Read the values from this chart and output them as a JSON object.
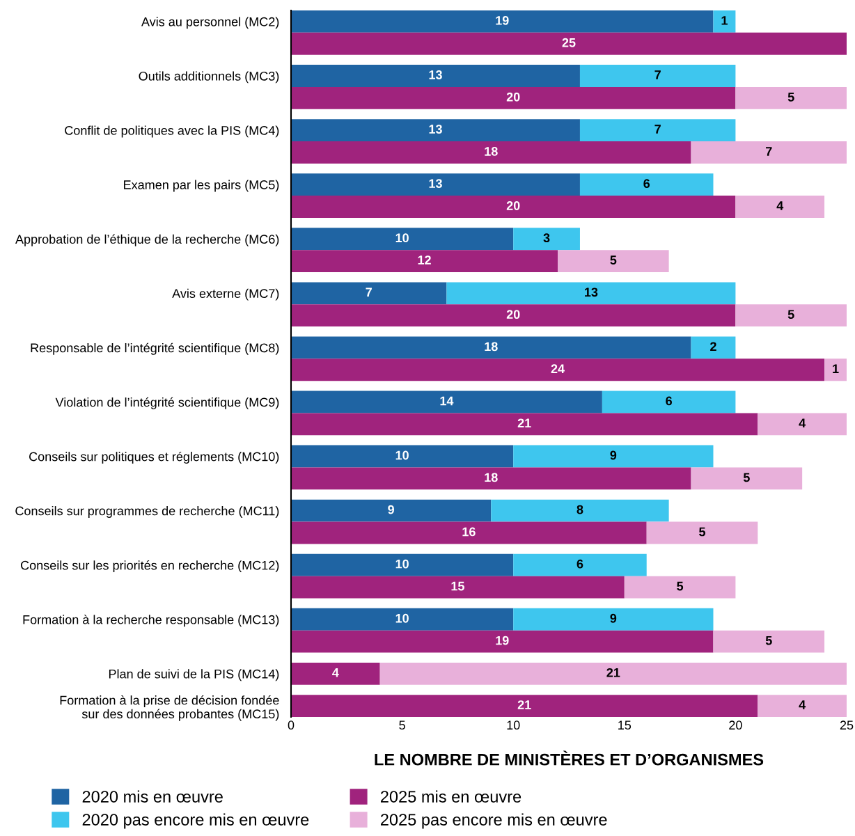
{
  "chart_data": {
    "type": "bar",
    "orientation": "horizontal",
    "stacked": true,
    "xlabel": "LE NOMBRE DE MINISTÈRES ET D’ORGANISMES",
    "categories": [
      "Avis au personnel (MC2)",
      null,
      "Outils additionnels (MC3)",
      null,
      "Conflit de politiques avec la PIS (MC4)",
      null,
      "Examen par les pairs (MC5)",
      null,
      "Approbation de l’éthique de la recherche (MC6)",
      null,
      "Avis externe (MC7)",
      null,
      "Responsable de l’intégrité scientifique (MC8)",
      null,
      "Violation de l’intégrité scientifique (MC9)",
      null,
      "Conseils sur politiques et réglements (MC10)",
      null,
      "Conseils sur programmes de recherche (MC11)",
      null,
      "Conseils sur les priorités en recherche (MC12)",
      null,
      "Formation à la recherche responsable (MC13)",
      null,
      "Plan de suivi de la PIS (MC14)",
      "Formation à la prise de décision fondée\nsur des données probantes (MC15)"
    ],
    "series": [
      {
        "name": "2020 mis en œuvre",
        "color": "#1f64a3",
        "values": [
          19,
          null,
          13,
          null,
          13,
          null,
          13,
          null,
          10,
          null,
          7,
          null,
          18,
          null,
          14,
          null,
          10,
          null,
          9,
          null,
          10,
          null,
          10,
          null,
          null,
          null
        ]
      },
      {
        "name": "2020 pas encore mis en œuvre",
        "color": "#3ec6ee",
        "values": [
          1,
          null,
          7,
          null,
          7,
          null,
          6,
          null,
          3,
          null,
          13,
          null,
          2,
          null,
          6,
          null,
          9,
          null,
          8,
          null,
          6,
          null,
          9,
          null,
          null,
          null
        ]
      },
      {
        "name": "2025 mis en œuvre",
        "color": "#a0237d",
        "values": [
          null,
          25,
          null,
          20,
          null,
          18,
          null,
          20,
          null,
          12,
          null,
          20,
          null,
          24,
          null,
          21,
          null,
          18,
          null,
          16,
          null,
          15,
          null,
          19,
          4,
          21
        ]
      },
      {
        "name": "2025 pas encore mis en œuvre",
        "color": "#e8b0da",
        "values": [
          null,
          null,
          null,
          5,
          null,
          7,
          null,
          4,
          null,
          5,
          null,
          5,
          null,
          1,
          null,
          4,
          null,
          5,
          null,
          5,
          null,
          5,
          null,
          5,
          21,
          4
        ]
      }
    ],
    "xlim": [
      0,
      25
    ],
    "xticks": [
      0,
      5,
      10,
      15,
      20,
      25
    ],
    "data_labels": true,
    "grid": false,
    "legend": "bottom"
  }
}
